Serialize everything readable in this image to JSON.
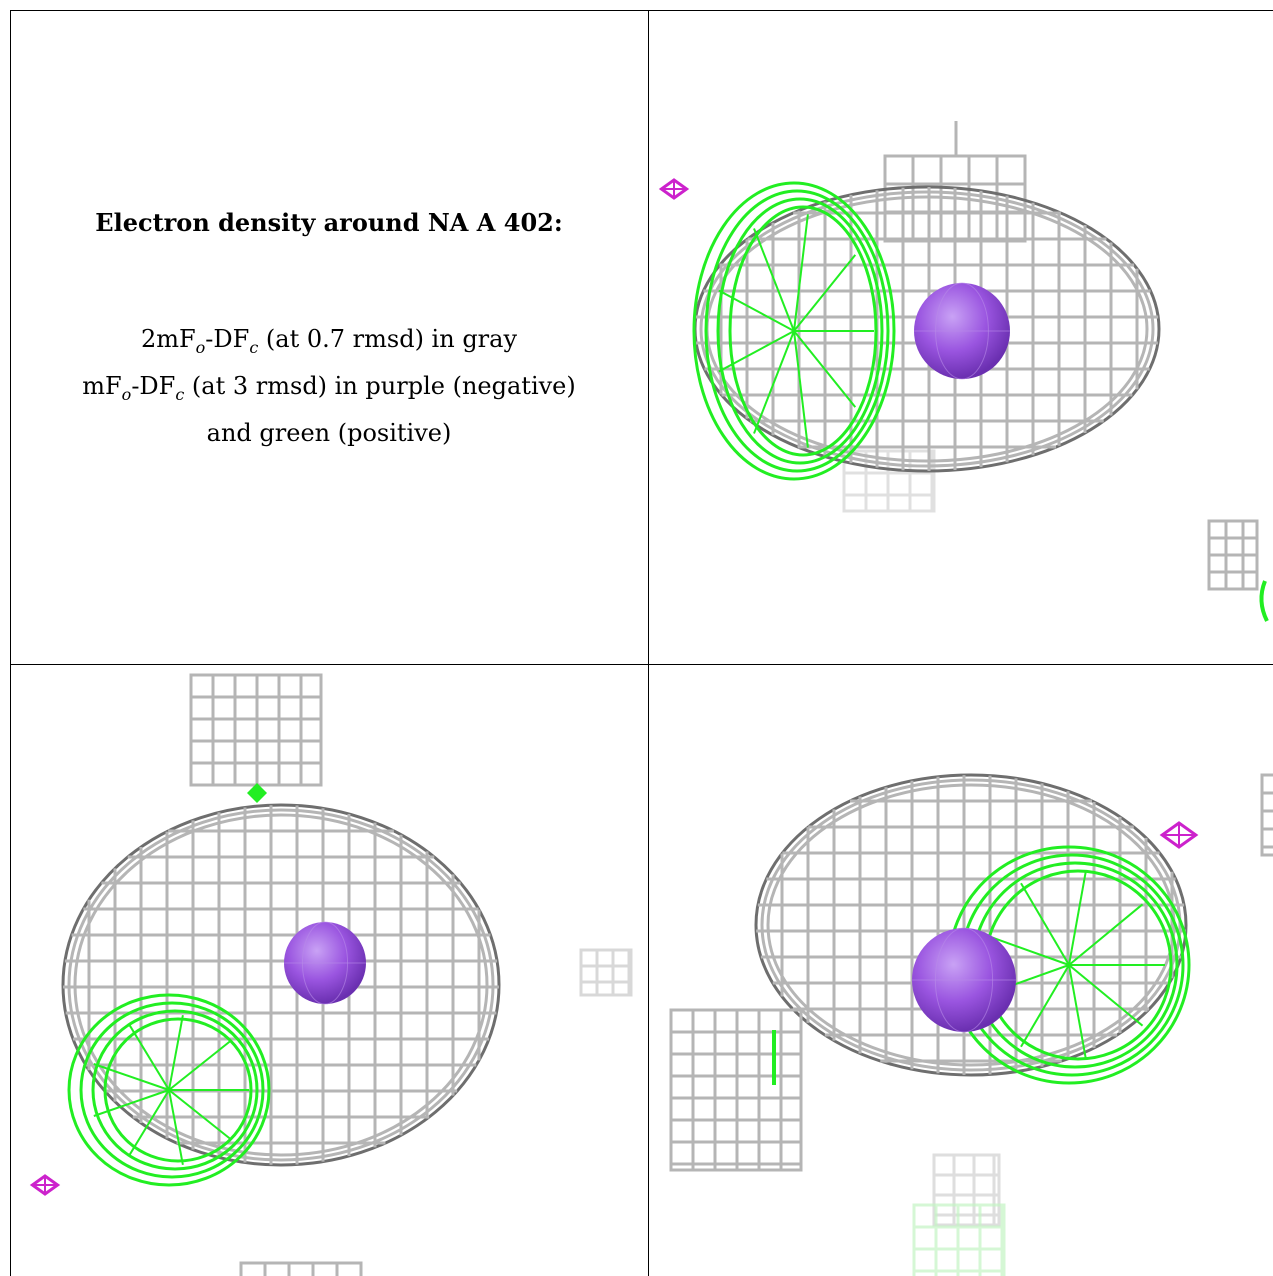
{
  "caption": {
    "title": "Electron density around NA A 402:",
    "line1_prefix": "2mF",
    "line1_sub1": "o",
    "line1_mid": "-DF",
    "line1_sub2": "c",
    "line1_suffix": " (at 0.7 rmsd) in gray",
    "line2_prefix": "mF",
    "line2_sub1": "o",
    "line2_mid": "-DF",
    "line2_sub2": "c",
    "line2_suffix": " (at 3 rmsd) in purple (negative)",
    "line3": "and green (positive)"
  },
  "colors": {
    "mesh_gray": "#b5b5b5",
    "mesh_dark": "#6e6e6e",
    "mesh_green": "#22ee22",
    "mesh_purple": "#cc22cc",
    "atom": "#9a55e0"
  },
  "panels": [
    {
      "name": "view-top-right",
      "atom": "NA A 402"
    },
    {
      "name": "view-bottom-left",
      "atom": "NA A 402"
    },
    {
      "name": "view-bottom-right",
      "atom": "NA A 402"
    }
  ]
}
